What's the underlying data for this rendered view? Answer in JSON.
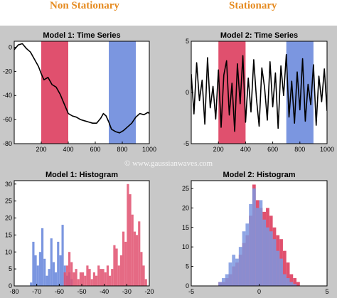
{
  "headings": {
    "left": "Non Stationary",
    "right": "Stationary"
  },
  "watermark": "© www.gaussianwaves.com",
  "colors": {
    "background": "#c8c8c8",
    "red": "#e0506e",
    "blue": "#7b96e0",
    "heading": "#e58a1f"
  },
  "chart_data": [
    {
      "type": "line",
      "title": "Model 1: Time Series",
      "xlim": [
        0,
        1000
      ],
      "ylim": [
        -80,
        5
      ],
      "xticks": [
        200,
        400,
        600,
        800,
        1000
      ],
      "yticks": [
        0,
        -20,
        -40,
        -60,
        -80
      ],
      "shaded_regions": [
        {
          "x": [
            200,
            400
          ],
          "color": "red"
        },
        {
          "x": [
            700,
            900
          ],
          "color": "blue"
        }
      ],
      "series": [
        {
          "x": [
            0,
            30,
            60,
            90,
            120,
            150,
            180,
            200,
            220,
            250,
            280,
            310,
            340,
            370,
            400,
            430,
            460,
            490,
            520,
            550,
            580,
            610,
            640,
            660,
            680,
            700,
            720,
            750,
            780,
            810,
            840,
            870,
            900,
            930,
            960,
            990,
            1000
          ],
          "y": [
            -2,
            2,
            3,
            -1,
            -4,
            -10,
            -16,
            -22,
            -27,
            -25,
            -31,
            -33,
            -39,
            -47,
            -55,
            -57,
            -58,
            -60,
            -61,
            -62,
            -63,
            -63,
            -59,
            -55,
            -57,
            -62,
            -68,
            -70,
            -71,
            -69,
            -66,
            -63,
            -58,
            -55,
            -56,
            -54,
            -55
          ]
        }
      ]
    },
    {
      "type": "line",
      "title": "Model 2: Time Series",
      "xlim": [
        0,
        1000
      ],
      "ylim": [
        -5,
        5
      ],
      "xticks": [
        200,
        400,
        600,
        800,
        1000
      ],
      "yticks": [
        5,
        0,
        -5
      ],
      "shaded_regions": [
        {
          "x": [
            200,
            400
          ],
          "color": "red"
        },
        {
          "x": [
            700,
            900
          ],
          "color": "blue"
        }
      ],
      "series": [
        {
          "x": [
            0,
            20,
            40,
            60,
            80,
            100,
            120,
            140,
            160,
            180,
            200,
            220,
            240,
            260,
            280,
            300,
            320,
            340,
            360,
            380,
            400,
            420,
            440,
            460,
            480,
            500,
            520,
            540,
            560,
            580,
            600,
            620,
            640,
            660,
            680,
            700,
            720,
            740,
            760,
            780,
            800,
            820,
            840,
            860,
            880,
            900,
            920,
            940,
            960,
            980,
            1000
          ],
          "y": [
            1.8,
            -2.1,
            2.9,
            -0.8,
            1.2,
            -3.1,
            3.4,
            -1.5,
            0.6,
            -2.6,
            2.2,
            -3.4,
            1.7,
            3.1,
            -2.2,
            0.9,
            -3.8,
            2.8,
            -1.1,
            3.6,
            -2.9,
            1.4,
            -1.9,
            3.2,
            -0.6,
            -3.3,
            2.4,
            0.5,
            -2.7,
            3.0,
            -1.4,
            1.9,
            -3.5,
            2.6,
            -0.3,
            3.7,
            -2.4,
            1.1,
            -3.0,
            2.0,
            -1.7,
            3.3,
            -2.8,
            0.8,
            -1.2,
            2.7,
            -3.2,
            1.6,
            -0.9,
            2.3,
            -1.8
          ]
        }
      ]
    },
    {
      "type": "bar",
      "title": "Model 1: Histogram",
      "xlim": [
        -80,
        -20
      ],
      "ylim": [
        0,
        31
      ],
      "xticks": [
        -80,
        -70,
        -60,
        -50,
        -40,
        -30,
        -20
      ],
      "yticks": [
        0,
        5,
        10,
        15,
        20,
        25,
        30
      ],
      "bin_width": 1,
      "series": [
        {
          "color": "blue",
          "x": [
            -73,
            -72,
            -71,
            -70,
            -69,
            -68,
            -67,
            -66,
            -65,
            -64,
            -63,
            -62,
            -61,
            -60,
            -59,
            -58,
            -57,
            -56,
            -55
          ],
          "values": [
            1,
            13,
            9,
            6,
            10,
            17,
            8,
            3,
            5,
            14,
            7,
            4,
            13,
            9,
            18,
            6,
            3,
            4,
            2
          ]
        },
        {
          "color": "red",
          "x": [
            -58,
            -57,
            -56,
            -55,
            -54,
            -53,
            -52,
            -51,
            -50,
            -49,
            -48,
            -47,
            -46,
            -45,
            -44,
            -43,
            -42,
            -41,
            -40,
            -39,
            -38,
            -37,
            -36,
            -35,
            -34,
            -33,
            -32,
            -31,
            -30,
            -29,
            -28,
            -27,
            -26,
            -25,
            -24,
            -23,
            -22
          ],
          "values": [
            4,
            6,
            10,
            7,
            4,
            5,
            2,
            4,
            4,
            3,
            6,
            5,
            2,
            4,
            3,
            6,
            5,
            5,
            4,
            6,
            3,
            5,
            12,
            11,
            6,
            9,
            16,
            13,
            30,
            27,
            21,
            16,
            15,
            19,
            10,
            6,
            2
          ]
        }
      ]
    },
    {
      "type": "bar",
      "title": "Model 2: Histogram",
      "xlim": [
        -5,
        5
      ],
      "ylim": [
        0,
        27
      ],
      "xticks": [
        -5,
        0,
        5
      ],
      "yticks": [
        0,
        5,
        10,
        15,
        20,
        25
      ],
      "bin_width": 0.25,
      "series": [
        {
          "color": "red",
          "x": [
            -3.0,
            -2.75,
            -2.5,
            -2.25,
            -2.0,
            -1.75,
            -1.5,
            -1.25,
            -1.0,
            -0.75,
            -0.5,
            -0.25,
            0.0,
            0.25,
            0.5,
            0.75,
            1.0,
            1.25,
            1.5,
            1.75,
            2.0,
            2.25,
            2.5,
            2.75
          ],
          "values": [
            1,
            1,
            2,
            3,
            5,
            6,
            8,
            11,
            13,
            18,
            26,
            22,
            20,
            19,
            20,
            18,
            15,
            13,
            12,
            9,
            6,
            3,
            2,
            1
          ]
        },
        {
          "color": "blue",
          "x": [
            -3.0,
            -2.75,
            -2.5,
            -2.25,
            -2.0,
            -1.75,
            -1.5,
            -1.25,
            -1.0,
            -0.75,
            -0.5,
            -0.25,
            0.0,
            0.25,
            0.5,
            0.75,
            1.0,
            1.25,
            1.5,
            1.75,
            2.0,
            2.25,
            2.5
          ],
          "values": [
            1,
            2,
            3,
            6,
            8,
            7,
            10,
            14,
            16,
            21,
            25,
            20,
            22,
            17,
            15,
            14,
            12,
            9,
            7,
            3,
            2,
            1,
            0.5
          ]
        }
      ]
    }
  ]
}
